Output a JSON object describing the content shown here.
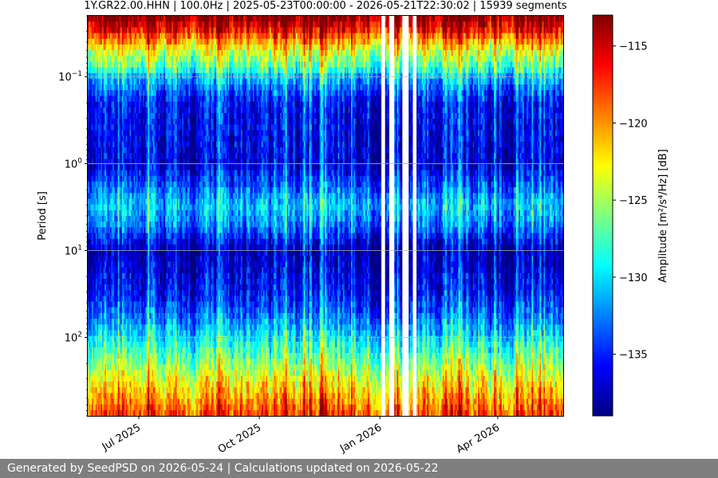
{
  "chart_data": {
    "type": "heatmap",
    "title": "1Y.GR22.00.HHN | 100.0Hz | 2025-05-23T00:00:00 - 2026-05-21T22:30:02 | 15939 segments",
    "ylabel": "Period [s]",
    "colorbar_label": "Amplitude [m²/s⁴/Hz] [dB]",
    "x_range": [
      "2025-05-23",
      "2026-05-21"
    ],
    "x_ticks": [
      {
        "date": "2025-07-01",
        "label": "Jul 2025"
      },
      {
        "date": "2025-10-01",
        "label": "Oct 2025"
      },
      {
        "date": "2026-01-01",
        "label": "Jan 2026"
      },
      {
        "date": "2026-04-01",
        "label": "Apr 2026"
      }
    ],
    "y_scale": "log",
    "y_inverted": true,
    "y_range": [
      0.02,
      800
    ],
    "y_ticks": [
      {
        "value": 0.1,
        "base": "10",
        "exp": "−1"
      },
      {
        "value": 1,
        "base": "10",
        "exp": "0"
      },
      {
        "value": 10,
        "base": "10",
        "exp": "1"
      },
      {
        "value": 100,
        "base": "10",
        "exp": "2"
      }
    ],
    "colorbar_range": [
      -139,
      -113
    ],
    "colorbar_ticks": [
      -115,
      -120,
      -125,
      -130,
      -135
    ],
    "colormap": "jet",
    "grid": true,
    "gaps": [
      [
        "2026-01-02",
        "2026-01-04"
      ],
      [
        "2026-01-08",
        "2026-01-11"
      ],
      [
        "2026-01-18",
        "2026-01-22"
      ],
      [
        "2026-01-26",
        "2026-01-28"
      ]
    ],
    "period_profile": [
      {
        "period": 0.02,
        "db": -113
      },
      {
        "period": 0.03,
        "db": -117
      },
      {
        "period": 0.05,
        "db": -124
      },
      {
        "period": 0.08,
        "db": -128
      },
      {
        "period": 0.1,
        "db": -131
      },
      {
        "period": 0.2,
        "db": -136
      },
      {
        "period": 1,
        "db": -137
      },
      {
        "period": 3,
        "db": -131
      },
      {
        "period": 5,
        "db": -133
      },
      {
        "period": 10,
        "db": -138
      },
      {
        "period": 30,
        "db": -136
      },
      {
        "period": 60,
        "db": -133
      },
      {
        "period": 100,
        "db": -130
      },
      {
        "period": 200,
        "db": -126
      },
      {
        "period": 400,
        "db": -122
      },
      {
        "period": 800,
        "db": -118
      }
    ]
  },
  "footer": {
    "text": "Generated by SeedPSD on 2026-05-24 | Calculations updated on 2026-05-22"
  }
}
